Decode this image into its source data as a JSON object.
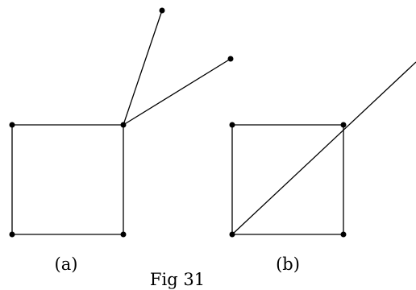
{
  "figure": {
    "caption": "Fig 31",
    "graph_a": {
      "label": "(a)"
    },
    "graph_b": {
      "label": "(b)"
    }
  },
  "colors": {
    "ink": "#000000",
    "background": "#ffffff"
  }
}
